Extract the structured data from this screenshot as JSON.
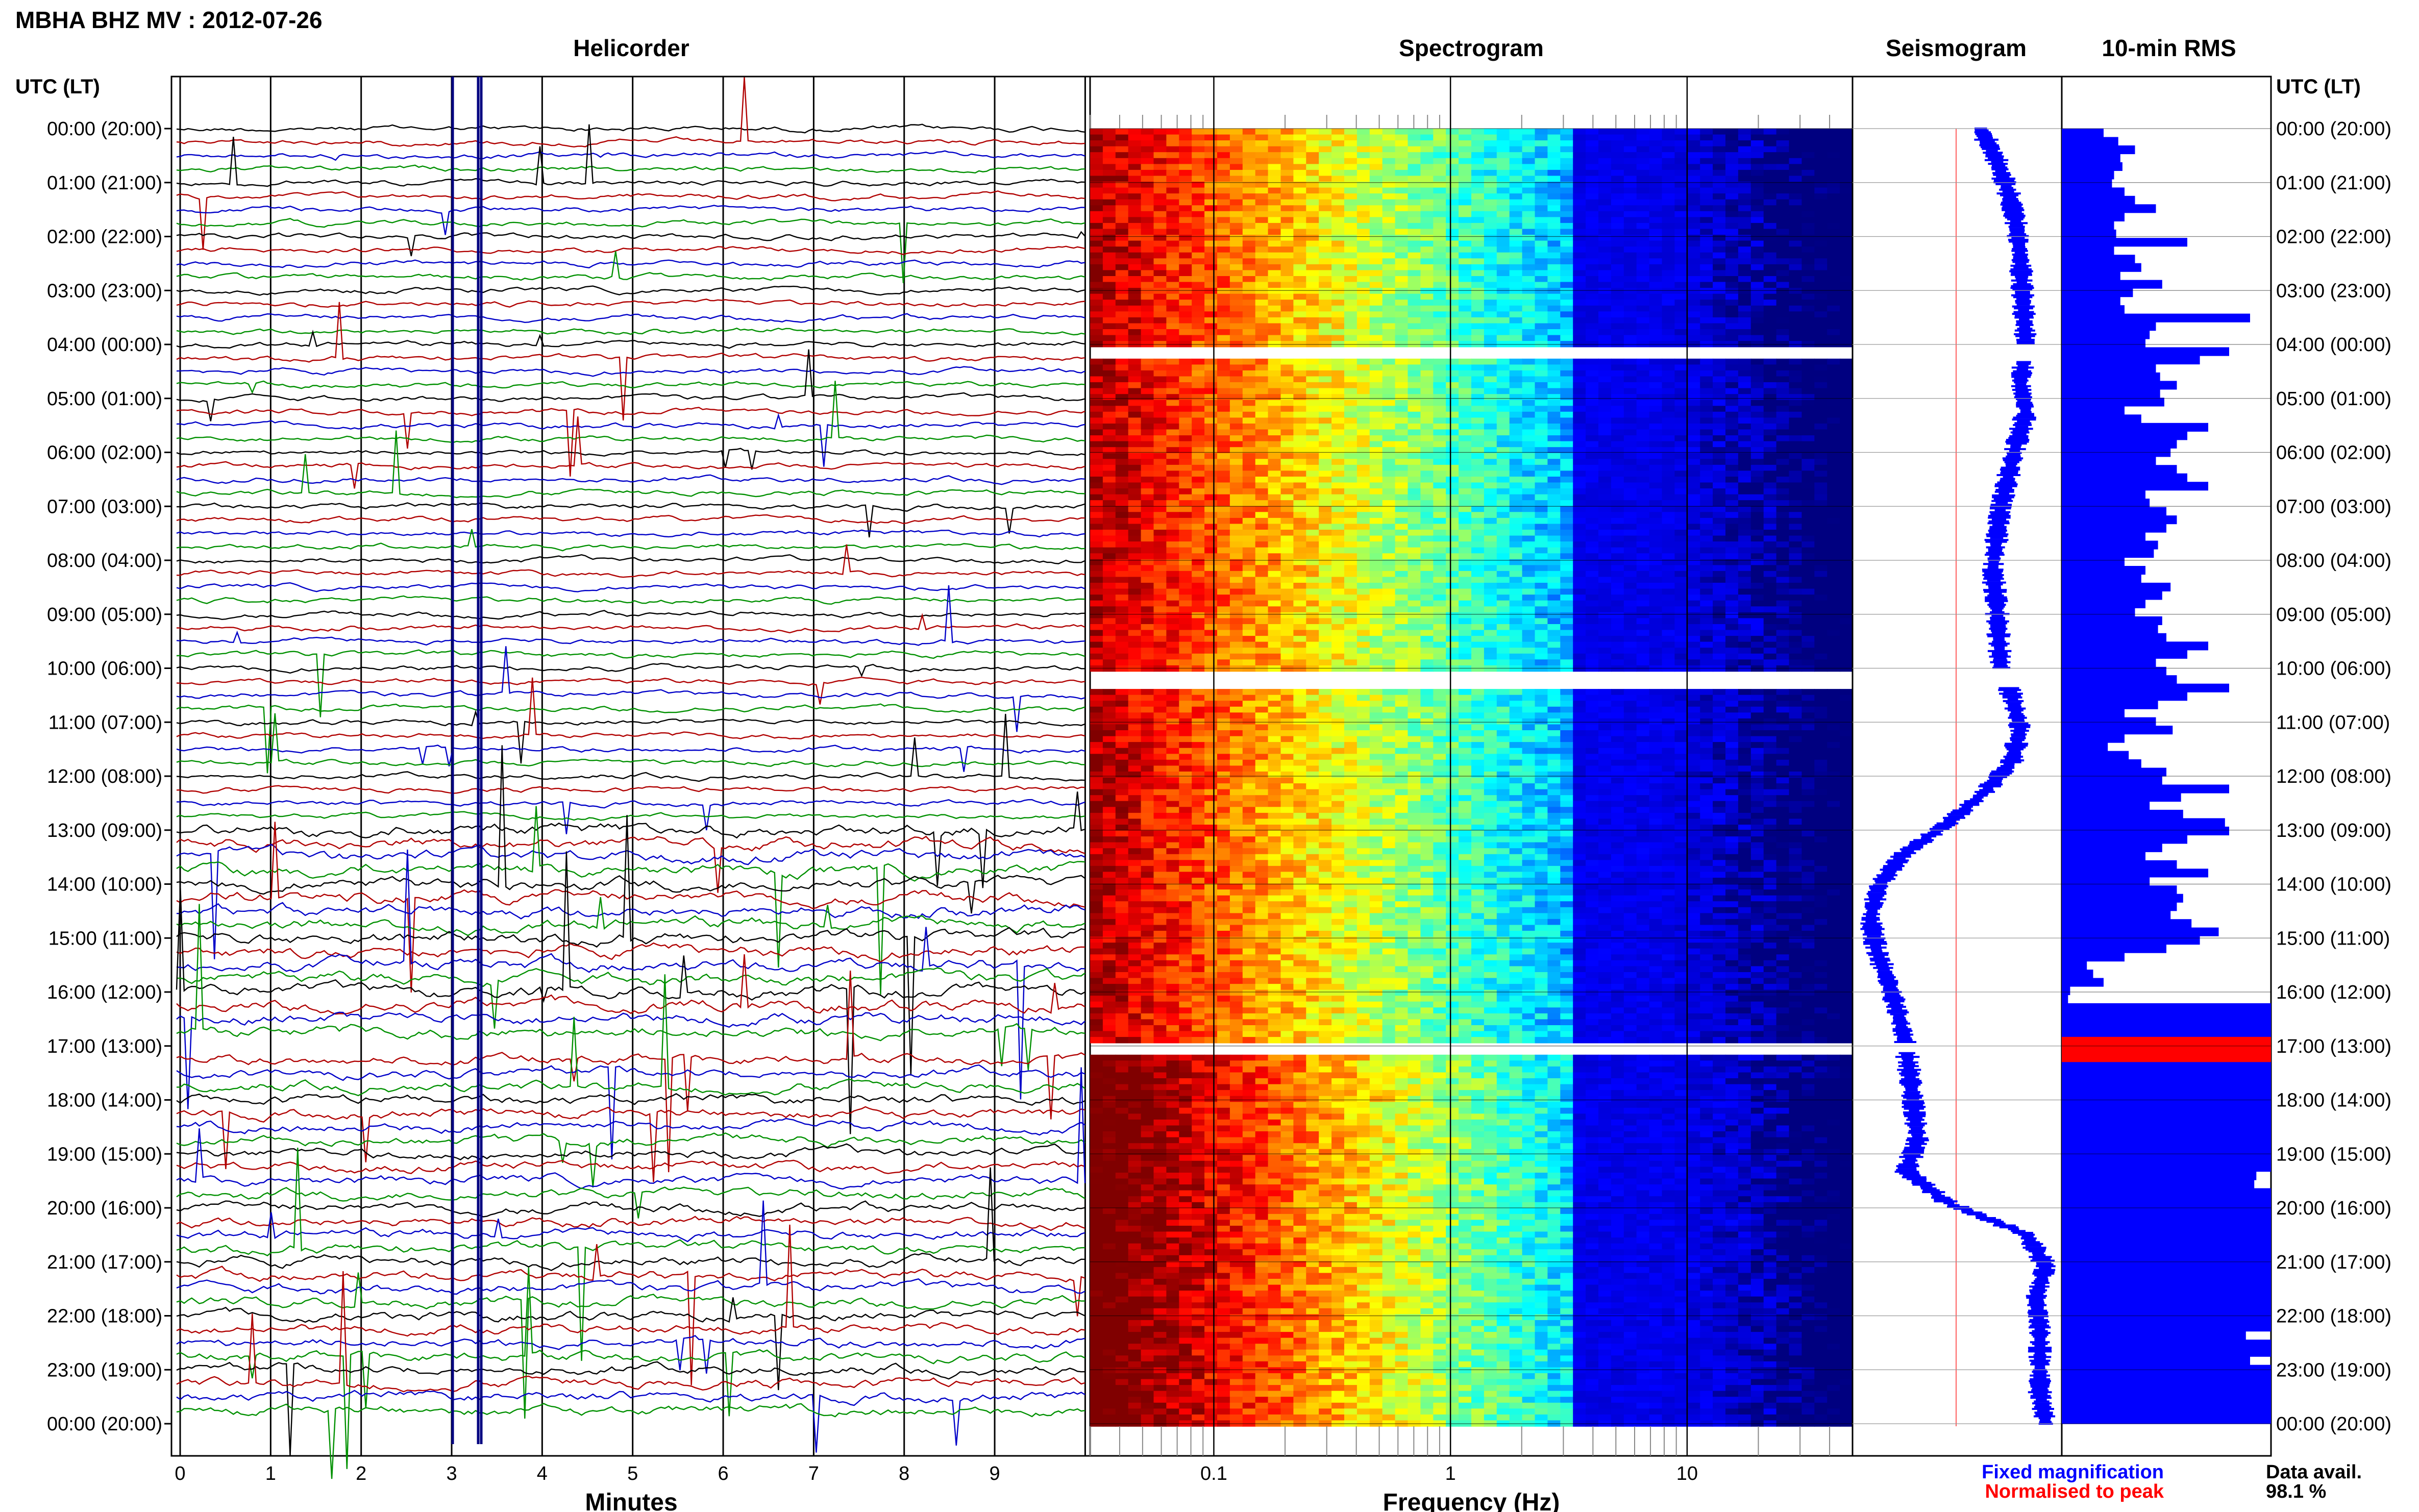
{
  "header": {
    "title": "MBHA BHZ MV : 2012-07-26"
  },
  "panels": {
    "helicorder": "Helicorder",
    "spectrogram": "Spectrogram",
    "seismogram": "Seismogram",
    "rms": "10-min RMS"
  },
  "axes": {
    "y_label": "UTC (LT)",
    "y_ticks": [
      "00:00 (20:00)",
      "01:00 (21:00)",
      "02:00 (22:00)",
      "03:00 (23:00)",
      "04:00 (00:00)",
      "05:00 (01:00)",
      "06:00 (02:00)",
      "07:00 (03:00)",
      "08:00 (04:00)",
      "09:00 (05:00)",
      "10:00 (06:00)",
      "11:00 (07:00)",
      "12:00 (08:00)",
      "13:00 (09:00)",
      "14:00 (10:00)",
      "15:00 (11:00)",
      "16:00 (12:00)",
      "17:00 (13:00)",
      "18:00 (14:00)",
      "19:00 (15:00)",
      "20:00 (16:00)",
      "21:00 (17:00)",
      "22:00 (18:00)",
      "23:00 (19:00)",
      "00:00 (20:00)"
    ],
    "minutes_label": "Minutes",
    "minutes_ticks": [
      "0",
      "1",
      "2",
      "3",
      "4",
      "5",
      "6",
      "7",
      "8",
      "9"
    ],
    "frequency_label": "Frequency (Hz)",
    "frequency_ticks": [
      "0.1",
      "1",
      "10"
    ]
  },
  "legend": {
    "fixed": "Fixed magnification",
    "normalised": "Normalised to peak",
    "data_avail_label": "Data avail.",
    "data_avail_value": "98.1 %"
  },
  "colors": {
    "trace_black": "#000000",
    "trace_red": "#b00000",
    "trace_blue": "#0000c8",
    "trace_green": "#009000",
    "spectrogram_low": "#000080",
    "rms_fill": "#0000ff",
    "rms_peak": "#ff0000",
    "legend_fixed": "#0000ff",
    "legend_normalised": "#ff0000"
  },
  "chart_data": {
    "type": "heatmap",
    "title": "MBHA BHZ MV : 2012-07-26",
    "y_range_hours": [
      0,
      24
    ],
    "minutes_range": [
      0,
      10
    ],
    "frequency_range_hz": [
      0.03,
      50
    ],
    "frequency_scale": "log",
    "data_gaps_hours": [
      [
        4.0,
        4.3
      ],
      [
        10.0,
        10.35
      ],
      [
        16.95,
        17.1
      ]
    ],
    "rms_10min": [
      0.2,
      0.27,
      0.35,
      0.28,
      0.29,
      0.25,
      0.24,
      0.3,
      0.35,
      0.45,
      0.3,
      0.25,
      0.26,
      0.6,
      0.25,
      0.35,
      0.38,
      0.28,
      0.48,
      0.34,
      0.28,
      0.3,
      0.9,
      0.45,
      0.42,
      0.4,
      0.8,
      0.66,
      0.45,
      0.47,
      0.55,
      0.47,
      0.49,
      0.3,
      0.38,
      0.7,
      0.6,
      0.55,
      0.52,
      0.45,
      0.55,
      0.6,
      0.7,
      0.4,
      0.42,
      0.5,
      0.55,
      0.5,
      0.4,
      0.46,
      0.44,
      0.3,
      0.4,
      0.38,
      0.52,
      0.48,
      0.4,
      0.35,
      0.48,
      0.46,
      0.5,
      0.7,
      0.6,
      0.45,
      0.5,
      0.55,
      0.8,
      0.6,
      0.46,
      0.3,
      0.45,
      0.53,
      0.3,
      0.22,
      0.32,
      0.38,
      0.5,
      0.48,
      0.8,
      0.57,
      0.42,
      0.58,
      0.78,
      0.8,
      0.6,
      0.48,
      0.4,
      0.55,
      0.7,
      0.42,
      0.55,
      0.58,
      0.55,
      0.52,
      0.62,
      0.75,
      0.66,
      0.5,
      0.3,
      0.12,
      0.15,
      0.2,
      0.04,
      0.03,
      1.0,
      1.0,
      1.0,
      1.0,
      1.0,
      1.0,
      1.0,
      1.0,
      1.0,
      1.0,
      1.0,
      1.0,
      1.0,
      1.0,
      1.0,
      1.0,
      1.0,
      1.0,
      1.0,
      1.0,
      0.93,
      0.92,
      1.0,
      1.0,
      1.0,
      1.0,
      1.0,
      1.0,
      1.0,
      1.0,
      1.0,
      1.0,
      1.0,
      1.0,
      1.0,
      1.0,
      1.0,
      1.0,
      1.0,
      0.88,
      1.0,
      1.0,
      0.9,
      1.0,
      1.0,
      1.0,
      1.0,
      1.0,
      1.0,
      1.0
    ],
    "seismogram_level": [
      0.62,
      0.7,
      0.76,
      0.8,
      0.82,
      0.83,
      0.84,
      0.85,
      0.82,
      0.85,
      0.8,
      0.76,
      0.72,
      0.7,
      0.68,
      0.7,
      0.71,
      0.72,
      0.78,
      0.82,
      0.78,
      0.64,
      0.45,
      0.22,
      0.1,
      0.06,
      0.09,
      0.15,
      0.2,
      0.24,
      0.26,
      0.28,
      0.3,
      0.24,
      0.45,
      0.85,
      0.95,
      0.9,
      0.92,
      0.92,
      0.92,
      0.95
    ]
  }
}
